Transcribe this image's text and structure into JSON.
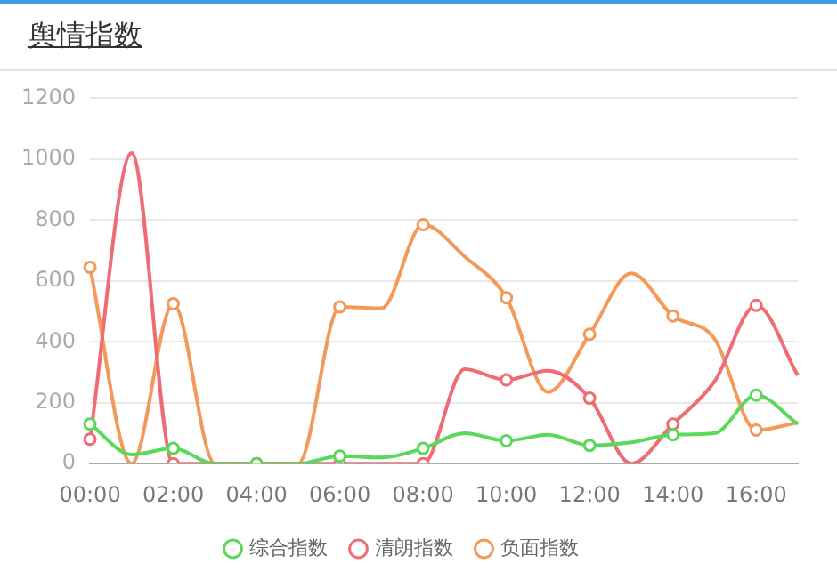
{
  "chart_data": {
    "type": "line",
    "title": "舆情指数",
    "categories": [
      "00:00",
      null,
      "02:00",
      null,
      "04:00",
      null,
      "06:00",
      null,
      "08:00",
      null,
      "10:00",
      null,
      "12:00",
      null,
      "14:00",
      null,
      "16:00",
      null
    ],
    "series": [
      {
        "name": "综合指数",
        "color": "#5ad85a",
        "values": [
          130,
          30,
          50,
          0,
          0,
          0,
          25,
          20,
          50,
          100,
          75,
          95,
          60,
          70,
          95,
          100,
          225,
          130
        ]
      },
      {
        "name": "清朗指数",
        "color": "#ef6c75",
        "values": [
          80,
          1020,
          0,
          0,
          0,
          0,
          0,
          0,
          0,
          310,
          275,
          305,
          215,
          0,
          130,
          270,
          520,
          290
        ]
      },
      {
        "name": "负面指数",
        "color": "#f3995a",
        "values": [
          645,
          0,
          525,
          0,
          0,
          0,
          515,
          510,
          785,
          680,
          545,
          235,
          425,
          625,
          485,
          410,
          110,
          135
        ]
      }
    ],
    "ylim": [
      0,
      1200
    ],
    "yticks": [
      0,
      200,
      400,
      600,
      800,
      1000,
      1200
    ],
    "grid": "y",
    "legend": "bottom",
    "marker": "circle",
    "line_style": "solid"
  }
}
